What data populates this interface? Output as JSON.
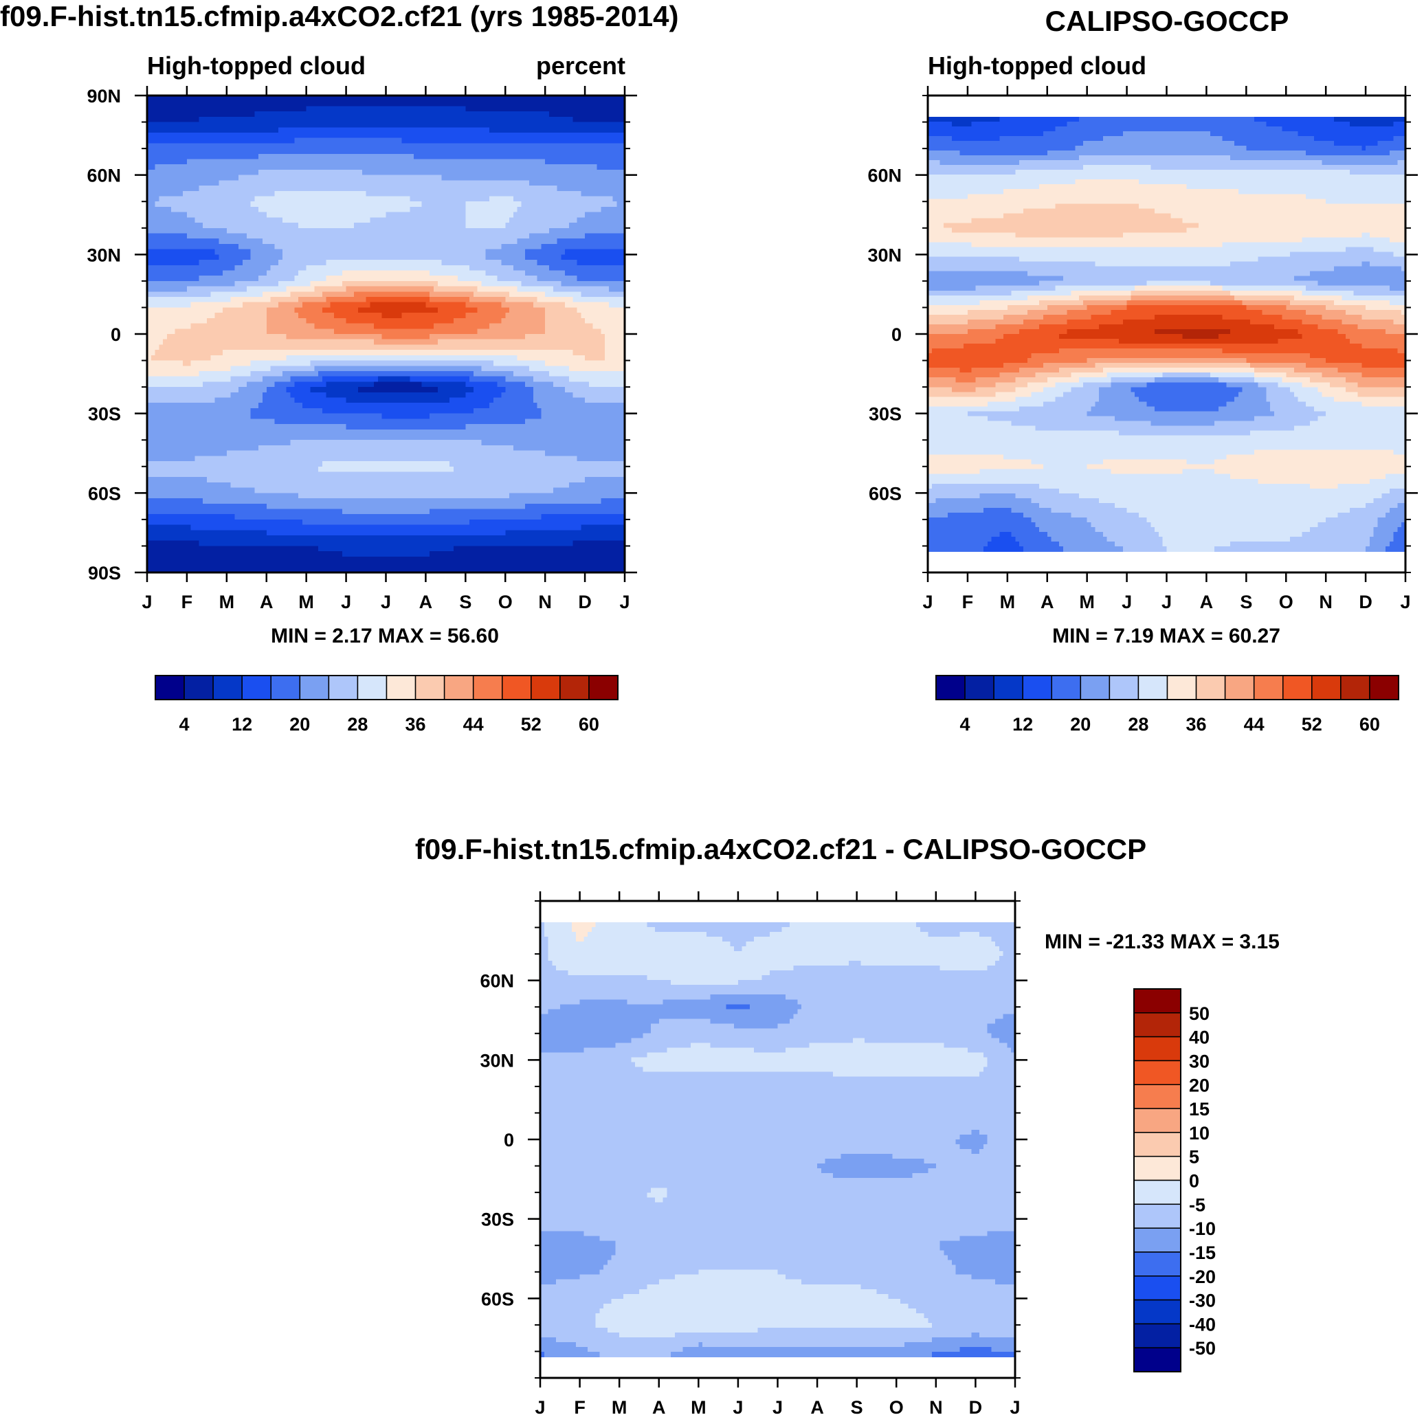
{
  "chart_data": [
    {
      "type": "heatmap",
      "title": "f09.F-hist.tn15.cfmip.a4xCO2.cf21 (yrs 1985-2014)",
      "subtitle_left": "High-topped cloud",
      "subtitle_right": "percent",
      "xlabel": "",
      "ylabel": "",
      "x_tick_labels": [
        "J",
        "F",
        "M",
        "A",
        "M",
        "J",
        "J",
        "A",
        "S",
        "O",
        "N",
        "D",
        "J"
      ],
      "y_tick_labels": [
        "90N",
        "60N",
        "30N",
        "0",
        "30S",
        "60S",
        "90S"
      ],
      "y_tick_values": [
        90,
        60,
        30,
        0,
        -30,
        -60,
        -90
      ],
      "ylim": [
        -90,
        90
      ],
      "stats_text": "MIN =   2.17 MAX =  56.60",
      "min": 2.17,
      "max": 56.6,
      "colorbar_labels": [
        "4",
        "12",
        "20",
        "28",
        "36",
        "44",
        "52",
        "60"
      ],
      "colorbar_levels": [
        0,
        4,
        8,
        12,
        16,
        20,
        24,
        28,
        32,
        36,
        40,
        44,
        48,
        52,
        56,
        60,
        64
      ],
      "lat_values": [
        -90,
        -80,
        -70,
        -60,
        -50,
        -40,
        -30,
        -20,
        -10,
        0,
        10,
        20,
        30,
        40,
        50,
        60,
        70,
        80,
        90
      ],
      "field": [
        [
          4,
          4,
          5,
          5,
          5,
          6,
          6,
          6,
          5,
          5,
          5,
          4,
          4
        ],
        [
          7,
          7,
          8,
          8,
          8,
          9,
          9,
          9,
          8,
          8,
          8,
          7,
          7
        ],
        [
          14,
          14,
          15,
          16,
          17,
          18,
          18,
          18,
          17,
          16,
          15,
          14,
          14
        ],
        [
          22,
          22,
          23,
          24,
          25,
          25,
          25,
          25,
          25,
          25,
          24,
          23,
          22
        ],
        [
          25,
          25,
          26,
          27,
          28,
          29,
          29,
          29,
          28,
          27,
          26,
          25,
          25
        ],
        [
          21,
          21,
          22,
          23,
          24,
          24,
          24,
          24,
          24,
          23,
          22,
          21,
          21
        ],
        [
          22,
          22,
          21,
          19,
          17,
          16,
          15,
          15,
          16,
          18,
          20,
          21,
          22
        ],
        [
          28,
          28,
          26,
          20,
          12,
          8,
          5,
          6,
          10,
          16,
          22,
          27,
          28
        ],
        [
          36,
          37,
          35,
          32,
          30,
          28,
          27,
          27,
          28,
          30,
          33,
          36,
          36
        ],
        [
          35,
          37,
          38,
          40,
          42,
          44,
          46,
          46,
          44,
          42,
          40,
          37,
          35
        ],
        [
          32,
          33,
          36,
          40,
          46,
          52,
          55,
          54,
          50,
          45,
          40,
          35,
          32
        ],
        [
          20,
          20,
          22,
          25,
          30,
          35,
          36,
          35,
          32,
          28,
          24,
          20,
          20
        ],
        [
          14,
          13,
          16,
          22,
          26,
          26,
          26,
          26,
          25,
          22,
          17,
          13,
          14
        ],
        [
          22,
          23,
          25,
          27,
          28,
          28,
          27,
          27,
          28,
          28,
          25,
          23,
          22
        ],
        [
          24,
          25,
          27,
          29,
          30,
          30,
          29,
          28,
          28,
          29,
          27,
          25,
          24
        ],
        [
          21,
          22,
          23,
          25,
          26,
          25,
          24,
          24,
          23,
          23,
          22,
          21,
          21
        ],
        [
          17,
          18,
          18,
          18,
          19,
          19,
          19,
          18,
          18,
          18,
          18,
          18,
          17
        ],
        [
          8,
          8,
          9,
          9,
          10,
          10,
          10,
          10,
          10,
          9,
          9,
          8,
          8
        ],
        [
          5,
          5,
          5,
          6,
          6,
          7,
          7,
          7,
          6,
          6,
          6,
          5,
          5
        ]
      ]
    },
    {
      "type": "heatmap",
      "title": "CALIPSO-GOCCP",
      "subtitle_left": "High-topped cloud",
      "xlabel": "",
      "ylabel": "",
      "x_tick_labels": [
        "J",
        "F",
        "M",
        "A",
        "M",
        "J",
        "J",
        "A",
        "S",
        "O",
        "N",
        "D",
        "J"
      ],
      "y_tick_labels": [
        "60N",
        "30N",
        "0",
        "30S",
        "60S"
      ],
      "y_tick_values": [
        60,
        30,
        0,
        -30,
        -60
      ],
      "ylim": [
        -90,
        90
      ],
      "data_lat_range": [
        -82,
        82
      ],
      "stats_text": "MIN =   7.19 MAX =  60.27",
      "min": 7.19,
      "max": 60.27,
      "colorbar_labels": [
        "4",
        "12",
        "20",
        "28",
        "36",
        "44",
        "52",
        "60"
      ],
      "colorbar_levels": [
        0,
        4,
        8,
        12,
        16,
        20,
        24,
        28,
        32,
        36,
        40,
        44,
        48,
        52,
        56,
        60,
        64
      ],
      "lat_values": [
        -82,
        -70,
        -60,
        -50,
        -40,
        -30,
        -20,
        -10,
        0,
        10,
        20,
        30,
        40,
        50,
        60,
        70,
        82
      ],
      "field": [
        [
          16,
          17,
          14,
          18,
          22,
          24,
          28,
          28,
          27,
          27,
          26,
          24,
          16
        ],
        [
          20,
          18,
          17,
          22,
          24,
          27,
          29,
          30,
          30,
          30,
          28,
          26,
          20
        ],
        [
          26,
          25,
          24,
          27,
          29,
          30,
          29,
          30,
          30,
          30,
          31,
          30,
          26
        ],
        [
          34,
          34,
          33,
          32,
          32,
          33,
          33,
          32,
          34,
          36,
          36,
          35,
          34
        ],
        [
          30,
          30,
          30,
          30,
          30,
          30,
          29,
          30,
          30,
          30,
          30,
          30,
          30
        ],
        [
          28,
          28,
          27,
          25,
          24,
          22,
          20,
          20,
          22,
          25,
          28,
          28,
          28
        ],
        [
          40,
          42,
          38,
          32,
          26,
          20,
          16,
          16,
          20,
          28,
          34,
          40,
          40
        ],
        [
          50,
          52,
          50,
          46,
          44,
          42,
          42,
          42,
          44,
          46,
          48,
          50,
          50
        ],
        [
          44,
          45,
          48,
          52,
          54,
          56,
          57,
          58,
          56,
          54,
          50,
          46,
          44
        ],
        [
          34,
          34,
          36,
          40,
          44,
          48,
          50,
          50,
          48,
          44,
          40,
          36,
          34
        ],
        [
          20,
          20,
          21,
          23,
          24,
          26,
          26,
          26,
          25,
          24,
          22,
          20,
          20
        ],
        [
          29,
          29,
          29,
          30,
          30,
          30,
          30,
          30,
          29,
          28,
          27,
          26,
          29
        ],
        [
          36,
          37,
          38,
          40,
          40,
          38,
          37,
          36,
          36,
          36,
          35,
          34,
          36
        ],
        [
          32,
          33,
          34,
          35,
          36,
          36,
          35,
          34,
          33,
          33,
          32,
          32,
          32
        ],
        [
          28,
          28,
          29,
          30,
          31,
          31,
          30,
          30,
          30,
          30,
          30,
          29,
          28
        ],
        [
          20,
          18,
          18,
          18,
          21,
          22,
          22,
          22,
          20,
          19,
          17,
          16,
          20
        ],
        [
          10,
          10,
          12,
          14,
          16,
          18,
          18,
          18,
          16,
          14,
          12,
          10,
          10
        ]
      ]
    },
    {
      "type": "heatmap",
      "title": "f09.F-hist.tn15.cfmip.a4xCO2.cf21 - CALIPSO-GOCCP",
      "xlabel": "",
      "ylabel": "",
      "x_tick_labels": [
        "J",
        "F",
        "M",
        "A",
        "M",
        "J",
        "J",
        "A",
        "S",
        "O",
        "N",
        "D",
        "J"
      ],
      "y_tick_labels": [
        "60N",
        "30N",
        "0",
        "30S",
        "60S"
      ],
      "y_tick_values": [
        60,
        30,
        0,
        -30,
        -60
      ],
      "ylim": [
        -90,
        90
      ],
      "data_lat_range": [
        -82,
        82
      ],
      "stats_text": "MIN = -21.33 MAX =   3.15",
      "min": -21.33,
      "max": 3.15,
      "colorbar_labels": [
        "50",
        "40",
        "30",
        "20",
        "15",
        "10",
        "5",
        "0",
        "-5",
        "-10",
        "-15",
        "-20",
        "-30",
        "-40",
        "-50"
      ],
      "colorbar_levels": [
        -100,
        -50,
        -40,
        -30,
        -20,
        -15,
        -10,
        -5,
        0,
        5,
        10,
        15,
        20,
        30,
        40,
        50,
        100
      ],
      "lat_values": [
        -82,
        -70,
        -60,
        -50,
        -40,
        -30,
        -20,
        -10,
        0,
        10,
        20,
        30,
        40,
        50,
        60,
        70,
        82
      ],
      "field": [
        [
          -16,
          -12,
          -9,
          -9,
          -15,
          -13,
          -12,
          -12,
          -12,
          -13,
          -16,
          -19,
          -16
        ],
        [
          -6,
          -6,
          -3,
          -2,
          -2,
          -3,
          -4,
          -4,
          -4,
          -4,
          -5,
          -6,
          -6
        ],
        [
          -8,
          -6,
          -5,
          -3,
          -1,
          -2,
          -4,
          -4,
          -4,
          -5,
          -6,
          -7,
          -8
        ],
        [
          -12,
          -11,
          -9,
          -6,
          -5,
          -5,
          -5,
          -6,
          -6,
          -7,
          -9,
          -11,
          -12
        ],
        [
          -13,
          -12,
          -10,
          -8,
          -8,
          -8,
          -8,
          -8,
          -8,
          -9,
          -10,
          -11,
          -13
        ],
        [
          -8,
          -8,
          -7,
          -7,
          -8,
          -8,
          -8,
          -8,
          -9,
          -9,
          -9,
          -8,
          -8
        ],
        [
          -10,
          -9,
          -7,
          -4,
          -8,
          -8,
          -9,
          -9,
          -8,
          -9,
          -9,
          -10,
          -10
        ],
        [
          -9,
          -9,
          -10,
          -9,
          -8,
          -8,
          -8,
          -10,
          -12,
          -11,
          -10,
          -9,
          -9
        ],
        [
          -8,
          -10,
          -9,
          -8,
          -5,
          -6,
          -8,
          -8,
          -8,
          -8,
          -9,
          -11,
          -8
        ],
        [
          -8,
          -8,
          -7,
          -6,
          -6,
          -7,
          -8,
          -8,
          -8,
          -8,
          -7,
          -8,
          -8
        ],
        [
          -6,
          -7,
          -6,
          -7,
          -8,
          -8,
          -8,
          -8,
          -7,
          -6,
          -6,
          -6,
          -6
        ],
        [
          -9,
          -8,
          -6,
          -3,
          -3,
          -3,
          -3,
          -2,
          -2,
          -3,
          -3,
          -3,
          -9
        ],
        [
          -13,
          -14,
          -13,
          -9,
          -6,
          -8,
          -9,
          -7,
          -6,
          -6,
          -6,
          -9,
          -13
        ],
        [
          -9,
          -11,
          -11,
          -11,
          -13,
          -16,
          -13,
          -8,
          -6,
          -6,
          -8,
          -9,
          -9
        ],
        [
          -6,
          -6,
          -6,
          -5,
          -3,
          -4,
          -6,
          -8,
          -7,
          -6,
          -6,
          -6,
          -6
        ],
        [
          -6,
          -1,
          -2,
          -3,
          -3,
          -5,
          -3,
          -3,
          -4,
          -4,
          -4,
          -3,
          -6
        ],
        [
          -6,
          2,
          -3,
          -6,
          -6,
          -6,
          -6,
          -3,
          -2,
          -4,
          -6,
          -6,
          -6
        ]
      ]
    }
  ]
}
